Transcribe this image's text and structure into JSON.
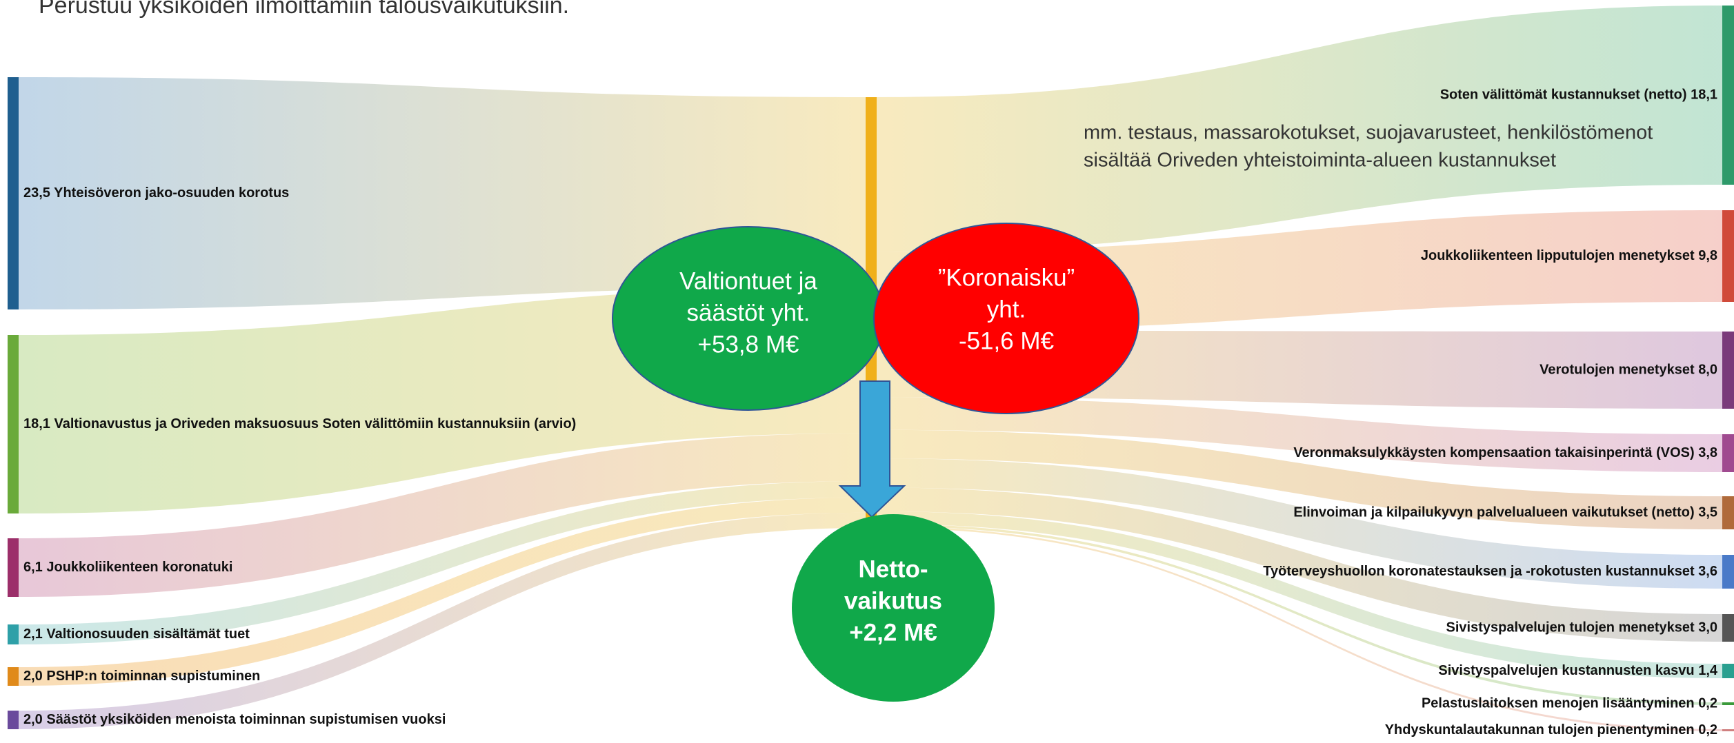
{
  "subtitle": "Perustuu yksiköiden ilmoittamiin talousvaikutuksiin.",
  "left_items": [
    "23,5 Yhteisöveron jako-osuuden korotus",
    "18,1 Valtionavustus ja Oriveden maksuosuus Soten välittömiin kustannuksiin (arvio)",
    "6,1 Joukkoliikenteen koronatuki",
    "2,1 Valtionosuuden sisältämät tuet",
    "2,0 PSHP:n toiminnan supistuminen",
    "2,0 Säästöt yksiköiden menoista toiminnan supistumisen vuoksi"
  ],
  "right_items": [
    "Soten välittömät kustannukset (netto) 18,1",
    "Joukkoliikenteen lipputulojen menetykset 9,8",
    "Verotulojen menetykset 8,0",
    "Veronmaksulykkäysten kompensaation takaisinperintä (VOS) 3,8",
    "Elinvoiman ja kilpailukyvyn palvelualueen vaikutukset (netto) 3,5",
    "Työterveyshuollon koronatestauksen ja -rokotusten kustannukset 3,6",
    "Sivistyspalvelujen tulojen menetykset 3,0",
    "Sivistyspalvelujen kustannusten kasvu 1,4",
    "Pelastuslaitoksen menojen lisääntyminen 0,2",
    "Yhdyskuntalautakunnan tulojen pienentyminen 0,2"
  ],
  "right_note": [
    "mm. testaus, massarokotukset, suojavarusteet, henkilöstömenot",
    "sisältää Oriveden yhteistoiminta-alueen kustannukset"
  ],
  "bubbles": {
    "support": [
      "Valtiontuet ja",
      "säästöt yht.",
      "+53,8 M€"
    ],
    "impact": [
      "”Koronaisku”",
      "yht.",
      "-51,6 M€"
    ],
    "net": [
      "Netto-",
      "vaikutus",
      "+2,2 M€"
    ]
  }
}
